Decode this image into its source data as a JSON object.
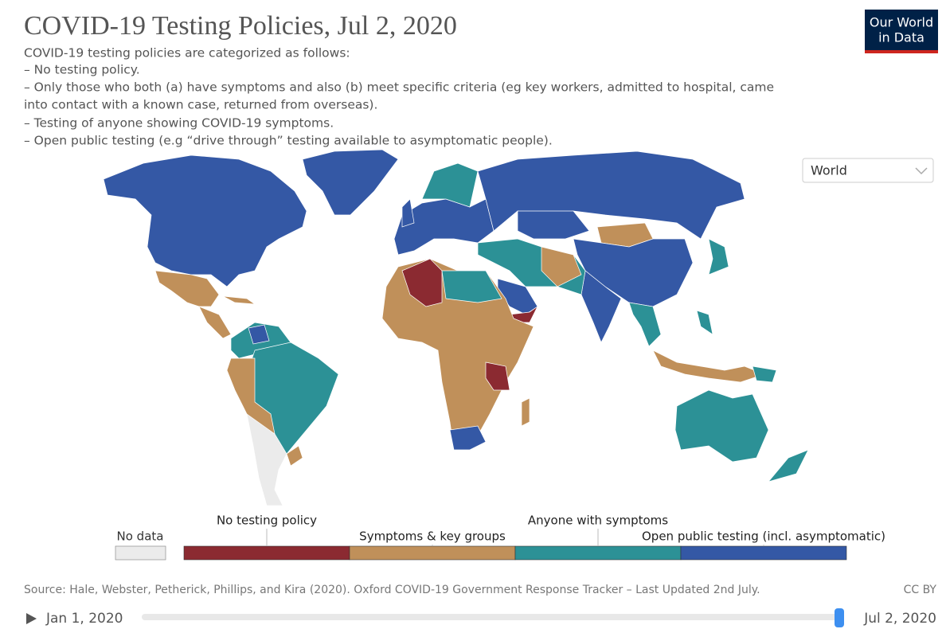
{
  "header": {
    "title": "COVID-19 Testing Policies, Jul 2, 2020",
    "subtitle_lines": [
      "COVID-19 testing policies are categorized as follows:",
      "– No testing policy.",
      "– Only those who both (a) have symptoms and also (b) meet specific criteria (eg key workers, admitted to hospital, came",
      "into contact with a known case, returned from overseas).",
      "– Testing of anyone showing COVID-19 symptoms.",
      "– Open public testing (e.g “drive through” testing available to asymptomatic people)."
    ]
  },
  "logo": {
    "lines": [
      "Our World",
      "in Data"
    ]
  },
  "region_selector": "World",
  "legend": {
    "no_data": {
      "label": "No data",
      "color": "#ebebeb"
    },
    "categories": [
      {
        "label": "No testing policy",
        "color": "#8b2a31"
      },
      {
        "label": "Symptoms & key groups",
        "color": "#c0905a"
      },
      {
        "label": "Anyone with symptoms",
        "color": "#2c9196"
      },
      {
        "label": "Open public testing (incl. asymptomatic)",
        "color": "#3458a5"
      }
    ]
  },
  "source": "Source: Hale, Webster, Petherick, Phillips, and Kira (2020). Oxford COVID-19 Government Response Tracker – Last Updated 2nd July.",
  "license": "CC BY",
  "timeline": {
    "start": "Jan 1, 2020",
    "end": "Jul 2, 2020"
  }
}
